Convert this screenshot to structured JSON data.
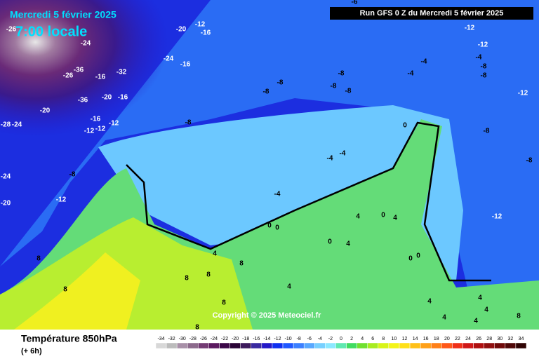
{
  "header": {
    "date": "Mercredi 5 février 2025",
    "time": "7:00 locale",
    "run": "Run GFS 0 Z du Mercredi 5 février 2025",
    "copyright": "Copyright © 2025 Meteociel.fr"
  },
  "footer": {
    "title": "Température 850hPa",
    "lead": "(+ 6h)"
  },
  "scale": {
    "values": [
      -34,
      -32,
      -30,
      -28,
      -26,
      -24,
      -22,
      -20,
      -18,
      -16,
      -14,
      -12,
      -10,
      -8,
      -6,
      -4,
      -2,
      0,
      2,
      4,
      6,
      8,
      10,
      12,
      14,
      16,
      18,
      20,
      22,
      24,
      26,
      28,
      30,
      32,
      34
    ],
    "colors": [
      "#d8d8d8",
      "#bcbcbc",
      "#a890a8",
      "#8c6a8c",
      "#743c74",
      "#5c1a60",
      "#3c0848",
      "#2a0436",
      "#3c1a5c",
      "#3a2aa0",
      "#2418c8",
      "#1030f0",
      "#2058ff",
      "#3c80ff",
      "#58a8ff",
      "#78d0ff",
      "#8ce8ff",
      "#60e8b0",
      "#40dc60",
      "#70e030",
      "#a8ec20",
      "#d8f418",
      "#f4f418",
      "#ffe018",
      "#ffc018",
      "#ffa018",
      "#ff8018",
      "#ff5818",
      "#f03018",
      "#d01818",
      "#b01010",
      "#901010",
      "#700a0a",
      "#500808",
      "#300404"
    ]
  },
  "map": {
    "labels": [
      -12,
      -16,
      -20,
      -24,
      -26,
      -24,
      -16,
      -26,
      -36,
      -32,
      -16,
      -36,
      -20,
      -16,
      -20,
      -28,
      -24,
      -16,
      -12,
      -12,
      -12,
      -8,
      -8,
      -8,
      -8,
      -8,
      -8,
      -8,
      -8,
      -4,
      -12,
      -12,
      -12,
      -4,
      -4,
      -8,
      -12,
      -24,
      -20,
      -4,
      -4,
      -4,
      0,
      -8,
      -8,
      -12,
      0,
      0,
      4,
      0,
      4,
      0,
      4,
      4,
      8,
      8,
      8,
      8,
      8,
      4,
      8,
      8,
      4,
      4,
      4,
      4,
      4,
      8,
      0,
      0,
      -6
    ]
  }
}
